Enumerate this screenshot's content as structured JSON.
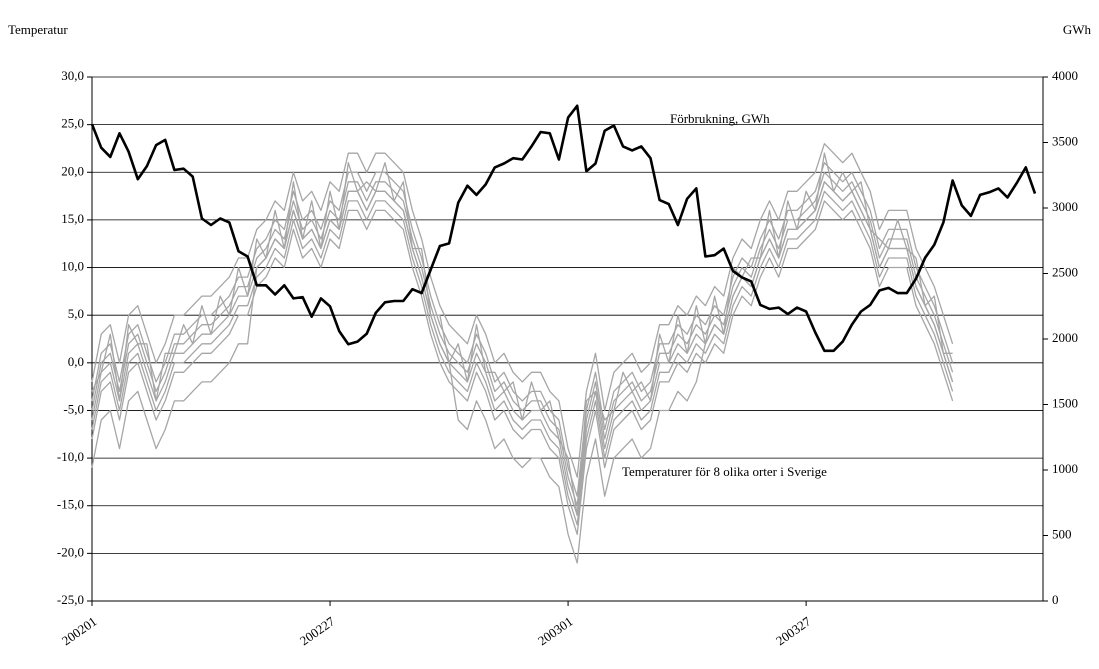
{
  "chart_data": {
    "type": "line",
    "y_label": "Temperatur",
    "y2_label": "GWh",
    "annotations": [
      "Förbrukning, GWh",
      "Temperaturer för 8 olika orter i Sverige"
    ],
    "categories": [
      "200201",
      null,
      null,
      null,
      null,
      null,
      null,
      null,
      null,
      null,
      null,
      null,
      null,
      null,
      null,
      null,
      null,
      null,
      null,
      null,
      null,
      null,
      null,
      null,
      null,
      null,
      "200227",
      null,
      null,
      null,
      null,
      null,
      null,
      null,
      null,
      null,
      null,
      null,
      null,
      null,
      null,
      null,
      null,
      null,
      null,
      null,
      null,
      null,
      null,
      null,
      null,
      null,
      "200301",
      null,
      null,
      null,
      null,
      null,
      null,
      null,
      null,
      null,
      null,
      null,
      null,
      null,
      null,
      null,
      null,
      null,
      null,
      null,
      null,
      null,
      null,
      null,
      null,
      null,
      "200327",
      null,
      null,
      null,
      null,
      null,
      null,
      null,
      null,
      null,
      null,
      null,
      null,
      null,
      null,
      null,
      null,
      null,
      null,
      null,
      null,
      null,
      null,
      null,
      null,
      null
    ],
    "ylim": [
      -25,
      30
    ],
    "yticks": [
      {
        "value": -25,
        "label": "-25,0"
      },
      {
        "value": -20,
        "label": "-20,0"
      },
      {
        "value": -15,
        "label": "-15,0"
      },
      {
        "value": -10,
        "label": "-10,0"
      },
      {
        "value": -5,
        "label": "-5,0"
      },
      {
        "value": 0,
        "label": "0,0"
      },
      {
        "value": 5,
        "label": "5,0"
      },
      {
        "value": 10,
        "label": "10,0"
      },
      {
        "value": 15,
        "label": "15,0"
      },
      {
        "value": 20,
        "label": "20,0"
      },
      {
        "value": 25,
        "label": "25,0"
      },
      {
        "value": 30,
        "label": "30,0"
      }
    ],
    "y2lim": [
      0,
      4000
    ],
    "y2ticks": [
      0,
      500,
      1000,
      1500,
      2000,
      2500,
      3000,
      3500,
      4000
    ],
    "grid": true,
    "series": [
      {
        "color": "#000000",
        "axis": "y2",
        "values": [
          3640,
          3460,
          3390,
          3570,
          3430,
          3220,
          3320,
          3480,
          3520,
          3290,
          3300,
          3240,
          2920,
          2870,
          2920,
          2890,
          2670,
          2630,
          2410,
          2410,
          2340,
          2410,
          2310,
          2320,
          2170,
          2310,
          2250,
          2060,
          1960,
          1980,
          2040,
          2200,
          2280,
          2290,
          2290,
          2380,
          2350,
          2530,
          2710,
          2730,
          3040,
          3170,
          3100,
          3180,
          3310,
          3340,
          3380,
          3370,
          3470,
          3580,
          3570,
          3370,
          3690,
          3780,
          3280,
          3340,
          3590,
          3630,
          3470,
          3440,
          3470,
          3380,
          3060,
          3030,
          2870,
          3070,
          3150,
          2630,
          2640,
          2690,
          2520,
          2470,
          2440,
          2260,
          2230,
          2240,
          2190,
          2240,
          2210,
          2050,
          1910,
          1910,
          1980,
          2110,
          2210,
          2260,
          2370,
          2390,
          2350,
          2350,
          2460,
          2620,
          2720,
          2890,
          3210,
          3020,
          2940,
          3100,
          3120,
          3150,
          3080,
          3190,
          3310,
          3110
        ]
      },
      {
        "color": "#a6a6a6",
        "values": [
          -2,
          3,
          4,
          0,
          5,
          6,
          3,
          0,
          2,
          5,
          5,
          6,
          7,
          7,
          8,
          9,
          11,
          11,
          14,
          15,
          17,
          16,
          20,
          17,
          18,
          16,
          19,
          18,
          22,
          22,
          20,
          22,
          22,
          21,
          20,
          16,
          13,
          9,
          6,
          4,
          3,
          2,
          5,
          3,
          0,
          1,
          -1,
          -2,
          -1,
          -1,
          -3,
          -4,
          -9,
          -12,
          -3,
          1,
          -5,
          -1,
          0,
          1,
          -1,
          0,
          4,
          4,
          6,
          5,
          7,
          6,
          8,
          7,
          11,
          13,
          12,
          15,
          17,
          15,
          18,
          18,
          19,
          20,
          23,
          22,
          21,
          22,
          20,
          18,
          14,
          16,
          16,
          16,
          12,
          10,
          8,
          5,
          2,
          null,
          null,
          null,
          null,
          null,
          null,
          null,
          null,
          null
        ]
      },
      {
        "color": "#a6a6a6",
        "values": [
          -4,
          1,
          2,
          -2,
          3,
          4,
          1,
          -2,
          0,
          3,
          3,
          4,
          5,
          5,
          6,
          7,
          9,
          9,
          12,
          13,
          15,
          14,
          18,
          15,
          16,
          14,
          17,
          16,
          20,
          20,
          18,
          20,
          20,
          19,
          18,
          14,
          11,
          7,
          4,
          2,
          1,
          0,
          3,
          1,
          -2,
          -1,
          -3,
          -4,
          -3,
          -3,
          -5,
          -6,
          -11,
          -14,
          -5,
          -1,
          -7,
          -3,
          -2,
          -1,
          -3,
          -2,
          2,
          2,
          4,
          3,
          5,
          4,
          6,
          5,
          9,
          11,
          10,
          13,
          15,
          13,
          16,
          16,
          17,
          18,
          21,
          20,
          19,
          20,
          18,
          16,
          12,
          14,
          14,
          14,
          10,
          8,
          6,
          3,
          0,
          null,
          null,
          null,
          null,
          null,
          null,
          null,
          null,
          null
        ]
      },
      {
        "color": "#a6a6a6",
        "values": [
          -5,
          0,
          1,
          -3,
          2,
          3,
          0,
          -3,
          -1,
          2,
          2,
          3,
          4,
          4,
          5,
          6,
          8,
          8,
          11,
          12,
          14,
          13,
          17,
          14,
          15,
          13,
          16,
          15,
          19,
          19,
          17,
          19,
          19,
          18,
          17,
          13,
          10,
          6,
          3,
          1,
          0,
          -1,
          2,
          0,
          -3,
          -2,
          -4,
          -5,
          -4,
          -4,
          -6,
          -7,
          -12,
          -15,
          -6,
          -2,
          -8,
          -4,
          -3,
          -2,
          -4,
          -3,
          1,
          1,
          3,
          2,
          4,
          3,
          5,
          4,
          8,
          10,
          9,
          12,
          14,
          12,
          15,
          15,
          16,
          17,
          20,
          19,
          18,
          19,
          17,
          15,
          11,
          13,
          13,
          13,
          9,
          7,
          5,
          2,
          -1,
          null,
          null,
          null,
          null,
          null,
          null,
          null,
          null,
          null
        ]
      },
      {
        "color": "#a6a6a6",
        "values": [
          -6,
          -1,
          0,
          -4,
          1,
          2,
          -1,
          -4,
          -2,
          1,
          1,
          2,
          3,
          3,
          4,
          5,
          7,
          7,
          10,
          11,
          13,
          12,
          16,
          13,
          14,
          12,
          15,
          14,
          18,
          18,
          16,
          18,
          18,
          17,
          16,
          12,
          9,
          5,
          2,
          0,
          -1,
          -2,
          1,
          -1,
          -4,
          -3,
          -5,
          -6,
          -5,
          -5,
          -7,
          -8,
          -13,
          -16,
          -7,
          -3,
          -9,
          -5,
          -4,
          -3,
          -5,
          -4,
          0,
          0,
          2,
          1,
          3,
          2,
          4,
          3,
          7,
          9,
          8,
          11,
          13,
          11,
          14,
          14,
          15,
          16,
          19,
          18,
          17,
          18,
          16,
          14,
          10,
          12,
          12,
          12,
          8,
          6,
          4,
          1,
          -2,
          null,
          null,
          null,
          null,
          null,
          null,
          null,
          null,
          null
        ]
      },
      {
        "color": "#a6a6a6",
        "values": [
          -7,
          -2,
          -1,
          -5,
          0,
          1,
          -2,
          -5,
          -3,
          0,
          0,
          1,
          2,
          2,
          3,
          4,
          6,
          6,
          9,
          10,
          12,
          11,
          15,
          12,
          13,
          11,
          14,
          13,
          17,
          17,
          15,
          17,
          17,
          16,
          15,
          11,
          8,
          4,
          1,
          -1,
          -2,
          -3,
          0,
          -2,
          -5,
          -4,
          -6,
          -7,
          -6,
          -6,
          -8,
          -9,
          -14,
          -17,
          -8,
          -4,
          -10,
          -6,
          -5,
          -4,
          -6,
          -5,
          -1,
          -1,
          1,
          0,
          2,
          1,
          3,
          2,
          6,
          8,
          7,
          10,
          12,
          10,
          13,
          13,
          14,
          15,
          18,
          17,
          16,
          17,
          15,
          13,
          9,
          11,
          11,
          11,
          7,
          5,
          3,
          0,
          -3,
          null,
          null,
          null,
          null,
          null,
          null,
          null,
          null,
          null
        ]
      },
      {
        "color": "#a6a6a6",
        "values": [
          -8,
          -3,
          -2,
          -6,
          -1,
          0,
          -3,
          -6,
          -4,
          -1,
          -1,
          0,
          1,
          1,
          2,
          3,
          5,
          5,
          8,
          9,
          11,
          10,
          14,
          11,
          12,
          10,
          13,
          12,
          16,
          16,
          14,
          16,
          16,
          15,
          14,
          10,
          7,
          3,
          0,
          -2,
          -3,
          -4,
          -1,
          -3,
          -6,
          -5,
          -7,
          -8,
          -7,
          -7,
          -9,
          -10,
          -15,
          -18,
          -9,
          -5,
          -11,
          -7,
          -6,
          -5,
          -7,
          -6,
          -2,
          -2,
          0,
          -1,
          1,
          0,
          2,
          1,
          5,
          7,
          6,
          9,
          11,
          9,
          12,
          12,
          13,
          14,
          17,
          16,
          15,
          16,
          14,
          12,
          8,
          10,
          10,
          10,
          6,
          4,
          2,
          -1,
          -4,
          null,
          null,
          null,
          null,
          null,
          null,
          null,
          null,
          null
        ]
      },
      {
        "color": "#a6a6a6",
        "values": [
          -3,
          -1,
          3,
          -4,
          4,
          2,
          2,
          -4,
          1,
          1,
          4,
          2,
          6,
          3,
          7,
          5,
          10,
          7,
          13,
          11,
          16,
          12,
          19,
          13,
          17,
          12,
          18,
          14,
          21,
          18,
          19,
          18,
          21,
          17,
          19,
          12,
          12,
          5,
          5,
          0,
          2,
          -2,
          4,
          -1,
          -1,
          -3,
          -2,
          -6,
          -2,
          -5,
          -4,
          -8,
          -10,
          -16,
          -4,
          -3,
          -6,
          -5,
          -1,
          -3,
          -2,
          -4,
          3,
          0,
          5,
          1,
          6,
          2,
          7,
          3,
          10,
          9,
          11,
          11,
          16,
          11,
          17,
          14,
          18,
          16,
          22,
          18,
          20,
          18,
          19,
          14,
          13,
          12,
          15,
          12,
          11,
          6,
          7,
          1,
          1,
          null,
          null,
          null,
          null,
          null,
          null,
          null,
          null,
          null
        ]
      },
      {
        "color": "#a6a6a6",
        "values": [
          -11,
          -6,
          -5,
          -9,
          -4,
          -3,
          -6,
          -9,
          -7,
          -4,
          -4,
          -3,
          -2,
          -2,
          -1,
          0,
          2,
          2,
          10,
          11,
          13,
          12,
          16,
          13,
          14,
          12,
          15,
          14,
          18,
          18,
          16,
          18,
          18,
          17,
          16,
          12,
          9,
          5,
          2,
          0,
          -6,
          -7,
          -4,
          -6,
          -9,
          -8,
          -10,
          -11,
          -10,
          -10,
          -12,
          -13,
          -18,
          -21,
          -12,
          -8,
          -14,
          -10,
          -9,
          -8,
          -10,
          -9,
          -5,
          -5,
          -3,
          -4,
          -2,
          2,
          4,
          3,
          7,
          9,
          8,
          11,
          13,
          11,
          14,
          14,
          15,
          16,
          19,
          18,
          17,
          18,
          16,
          14,
          10,
          12,
          12,
          12,
          8,
          6,
          4,
          1,
          -2,
          null,
          null,
          null,
          null,
          null,
          null,
          null,
          null,
          null
        ]
      }
    ]
  }
}
